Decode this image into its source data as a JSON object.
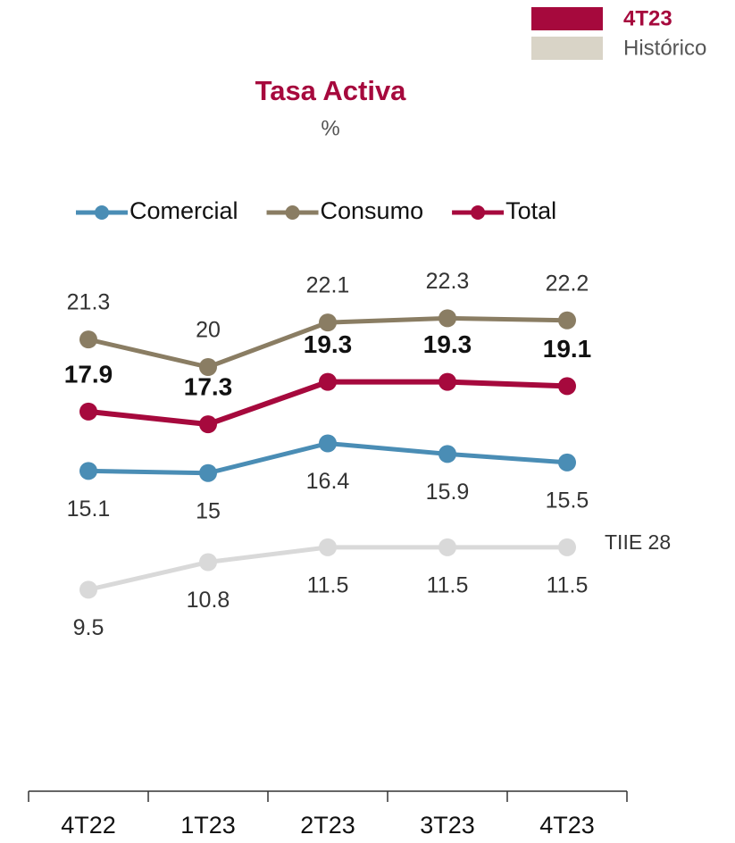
{
  "period_legend": [
    {
      "label": "4T23",
      "color": "#a6093d"
    },
    {
      "label": "Histórico",
      "color": "#d9d4c7"
    }
  ],
  "chart_data": {
    "type": "line",
    "title": "Tasa Activa",
    "subtitle": "%",
    "categories": [
      "4T22",
      "1T23",
      "2T23",
      "3T23",
      "4T23"
    ],
    "ylim": [
      0,
      30
    ],
    "series": [
      {
        "name": "Comercial",
        "color": "#4a8db5",
        "values": [
          15.1,
          15.0,
          16.4,
          15.9,
          15.5
        ]
      },
      {
        "name": "Consumo",
        "color": "#8a7d63",
        "values": [
          21.3,
          20.0,
          22.1,
          22.3,
          22.2
        ]
      },
      {
        "name": "Total",
        "color": "#a6093d",
        "values": [
          17.9,
          17.3,
          19.3,
          19.3,
          19.1
        ]
      },
      {
        "name": "TIIE 28",
        "color": "#d9d9d9",
        "values": [
          9.5,
          10.8,
          11.5,
          11.5,
          11.5
        ],
        "in_legend": false
      }
    ]
  }
}
